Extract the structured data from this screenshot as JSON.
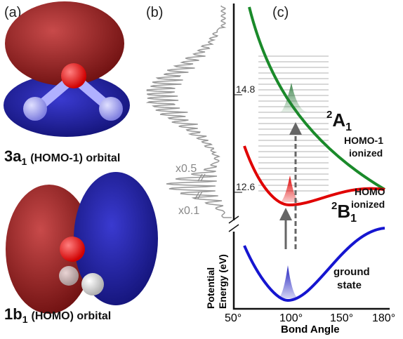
{
  "panel_a": {
    "label": "(a)",
    "orbital_1": {
      "main": "3a",
      "sub": "1",
      "rest": "(HOMO-1) orbital"
    },
    "orbital_2": {
      "main": "1b",
      "sub": "1",
      "rest": "(HOMO) orbital"
    }
  },
  "panel_b": {
    "label": "(b)",
    "scale_1": "x0.5",
    "scale_2": "x0.1"
  },
  "panel_c": {
    "label": "(c)",
    "y_axis_label": [
      "Potential",
      "Energy (eV)"
    ],
    "y_ticks": [
      "14.8",
      "12.6"
    ],
    "x_axis_label": "Bond Angle",
    "x_ticks": [
      "50°",
      "100°",
      "150°",
      "180°"
    ],
    "state_1": {
      "sup": "2",
      "main": "A",
      "sub": "1",
      "note": [
        "HOMO-1",
        "ionized"
      ]
    },
    "state_2": {
      "sup": "2",
      "main": "B",
      "sub": "1",
      "note": [
        "HOMO",
        "ionized"
      ]
    },
    "state_3": {
      "note": [
        "ground",
        "state"
      ]
    }
  }
}
